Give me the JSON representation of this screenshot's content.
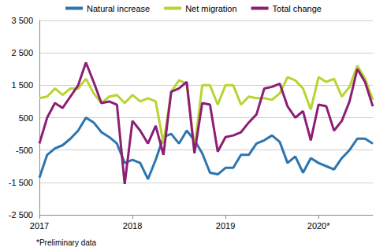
{
  "chart_data": {
    "type": "line",
    "categories": [
      "2017",
      null,
      null,
      null,
      null,
      null,
      null,
      null,
      null,
      null,
      null,
      null,
      "2018",
      null,
      null,
      null,
      null,
      null,
      null,
      null,
      null,
      null,
      null,
      null,
      "2019",
      null,
      null,
      null,
      null,
      null,
      null,
      null,
      null,
      null,
      null,
      null,
      "2020*",
      null,
      null,
      null,
      null,
      null,
      null,
      null
    ],
    "series": [
      {
        "name": "Natural increase",
        "color": "#2c75b0",
        "values": [
          -1350,
          -650,
          -450,
          -350,
          -150,
          100,
          500,
          350,
          50,
          -100,
          -300,
          -900,
          -800,
          -900,
          -1400,
          -800,
          -100,
          0,
          -300,
          100,
          -200,
          -600,
          -1200,
          -1250,
          -1050,
          -1050,
          -650,
          -650,
          -300,
          -200,
          -50,
          -250,
          -900,
          -700,
          -1200,
          -750,
          -900,
          -1000,
          -1100,
          -750,
          -500,
          -150,
          -150,
          -300
        ]
      },
      {
        "name": "Net migration",
        "color": "#b8d432",
        "values": [
          1100,
          1150,
          1400,
          1200,
          1400,
          1400,
          1700,
          1250,
          950,
          1150,
          1200,
          950,
          1200,
          1000,
          1100,
          1000,
          -300,
          1300,
          1650,
          1550,
          -450,
          1500,
          1500,
          900,
          1500,
          1500,
          900,
          1150,
          1100,
          1100,
          1050,
          1250,
          1750,
          1650,
          1400,
          750,
          1750,
          1600,
          1700,
          1150,
          1450,
          2100,
          1700,
          1050
        ]
      },
      {
        "name": "Total change",
        "color": "#8e1e74",
        "values": [
          -300,
          500,
          950,
          800,
          1150,
          1500,
          2200,
          1600,
          950,
          1000,
          900,
          -1550,
          400,
          100,
          -300,
          250,
          -650,
          1300,
          1400,
          1600,
          -600,
          950,
          900,
          -550,
          -100,
          -50,
          50,
          350,
          600,
          1400,
          1450,
          1550,
          850,
          500,
          700,
          -200,
          900,
          850,
          100,
          400,
          1000,
          2000,
          1600,
          850
        ]
      }
    ],
    "ylim": [
      -2500,
      3500
    ],
    "yticks": [
      {
        "value": -2500,
        "label": "-2 500"
      },
      {
        "value": -1500,
        "label": "-1 500"
      },
      -500,
      500,
      {
        "value": 1500,
        "label": "1 500"
      },
      {
        "value": 2500,
        "label": "2 500"
      },
      {
        "value": 3500,
        "label": "3 500"
      }
    ],
    "grid": true,
    "legend": "top",
    "annotations": [
      "*Preliminary data"
    ]
  }
}
